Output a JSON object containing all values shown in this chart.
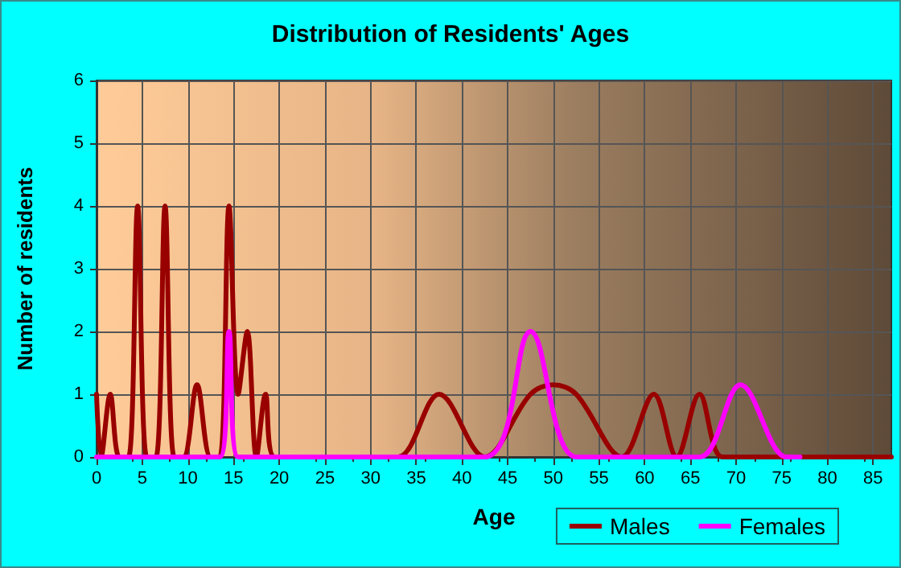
{
  "chart_data": {
    "type": "line",
    "title": "Distribution of Residents' Ages",
    "xlabel": "Age",
    "ylabel": "Number of residents",
    "xlim": [
      0,
      87
    ],
    "xticks": [
      0,
      5,
      10,
      15,
      20,
      25,
      30,
      35,
      40,
      45,
      50,
      55,
      60,
      65,
      70,
      75,
      80,
      85
    ],
    "ylim": [
      0,
      6
    ],
    "yticks": [
      0,
      1,
      2,
      3,
      4,
      5,
      6
    ],
    "grid": true,
    "legend": "bottom right",
    "marker": "none",
    "line_style": "solid",
    "series": [
      {
        "name": "Males",
        "color": "#990000",
        "x": [
          0,
          0.5,
          1.5,
          2.5,
          3.5,
          4.5,
          5.5,
          6.5,
          7.5,
          8.5,
          9.5,
          11,
          12.5,
          13.5,
          14.5,
          15.5,
          16.5,
          17.5,
          18.5,
          19.5,
          25,
          30,
          33,
          37.5,
          42.5,
          47.5,
          50,
          52.5,
          57.5,
          61,
          63.5,
          66,
          68.5,
          72,
          87
        ],
        "values": [
          1,
          0,
          1,
          0,
          0,
          4,
          0,
          0,
          4,
          0,
          0,
          1.15,
          0,
          0,
          4,
          1,
          2,
          0,
          1,
          0,
          0,
          0,
          0,
          1,
          0,
          1,
          1.15,
          1,
          0,
          1,
          0,
          1,
          0,
          0,
          0
        ]
      },
      {
        "name": "Females",
        "color": "#ff00ff",
        "x": [
          0,
          13.5,
          14.5,
          15.5,
          25,
          42.5,
          47.5,
          52.5,
          60,
          66,
          70.5,
          75.5,
          77
        ],
        "values": [
          0,
          0,
          2,
          0,
          0,
          0,
          2,
          0,
          0,
          0,
          1.15,
          0,
          0
        ]
      }
    ]
  }
}
